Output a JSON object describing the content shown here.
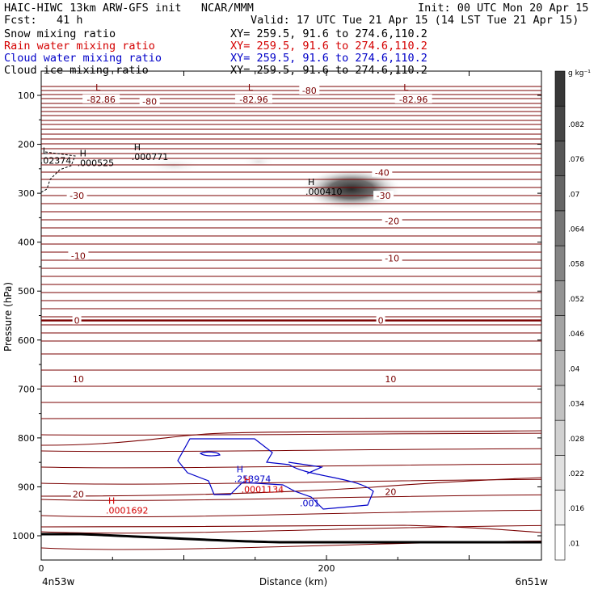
{
  "header": {
    "line1_left": "HAIC-HIWC 13km ARW-GFS init   NCAR/MMM",
    "line1_right": "Init: 00 UTC Mon 20 Apr 15",
    "line2_left": "Fcst:   41 h",
    "line2_right": "Valid: 17 UTC Tue 21 Apr 15 (14 LST Tue 21 Apr 15)",
    "fields": [
      {
        "name": "Snow mixing ratio",
        "xy": "XY= 259.5, 91.6 to 274.6,110.2",
        "color": "#000000"
      },
      {
        "name": "Rain water mixing ratio",
        "xy": "XY= 259.5, 91.6 to 274.6,110.2",
        "color": "#d40000"
      },
      {
        "name": "Cloud water mixing ratio",
        "xy": "XY= 259.5, 91.6 to 274.6,110.2",
        "color": "#0000c8"
      },
      {
        "name": "Cloud ice mixing ratio",
        "xy": "XY= 259.5, 91.6 to 274.6,110.2",
        "color": "#000000"
      }
    ]
  },
  "chart_data": {
    "type": "cross-section",
    "ylabel": "Pressure (hPa)",
    "xlabel": "Distance (km)",
    "x_ticks": [
      0,
      200
    ],
    "y_ticks": [
      100,
      200,
      300,
      400,
      500,
      600,
      700,
      800,
      900,
      1000
    ],
    "xlim": [
      0,
      300
    ],
    "ylim": [
      1050,
      50
    ],
    "x_endpoints": {
      "left": "4n53w",
      "right": "6n51w"
    },
    "colorbar": {
      "unit": "g kg⁻¹",
      "levels": [
        ".01",
        ".016",
        ".022",
        ".028",
        ".034",
        ".04",
        ".046",
        ".052",
        ".058",
        ".064",
        ".07",
        ".076",
        ".082"
      ]
    },
    "temperature_contour_labels": [
      {
        "text": "-82.86",
        "x": 42,
        "p": 108
      },
      {
        "text": "-80",
        "x": 76,
        "p": 112
      },
      {
        "text": "-82.96",
        "x": 149,
        "p": 108
      },
      {
        "text": "-80",
        "x": 188,
        "p": 90
      },
      {
        "text": "-82.96",
        "x": 261,
        "p": 108
      },
      {
        "text": "-40",
        "x": 239,
        "p": 258
      },
      {
        "text": "-30",
        "x": 25,
        "p": 305
      },
      {
        "text": "-30",
        "x": 240,
        "p": 305
      },
      {
        "text": "-20",
        "x": 246,
        "p": 357
      },
      {
        "text": "-10",
        "x": 26,
        "p": 428
      },
      {
        "text": "-10",
        "x": 246,
        "p": 433
      },
      {
        "text": "0",
        "x": 25,
        "p": 560
      },
      {
        "text": "0",
        "x": 238,
        "p": 560
      },
      {
        "text": "10",
        "x": 26,
        "p": 680
      },
      {
        "text": "10",
        "x": 245,
        "p": 680
      },
      {
        "text": "20",
        "x": 26,
        "p": 915
      },
      {
        "text": "20",
        "x": 245,
        "p": 910
      }
    ],
    "extrema": [
      {
        "mark": "L",
        "value": "",
        "x": 38,
        "p": 90,
        "color": "#800000"
      },
      {
        "mark": "L",
        "value": "",
        "x": 145,
        "p": 90,
        "color": "#800000"
      },
      {
        "mark": "L",
        "value": "",
        "x": 254,
        "p": 90,
        "color": "#800000"
      },
      {
        "mark": "L",
        "value": ".02374",
        "x": 1,
        "p": 220,
        "color": "#000000"
      },
      {
        "mark": "H",
        "value": ".000525",
        "x": 27,
        "p": 225,
        "color": "#000000"
      },
      {
        "mark": "H",
        "value": ".000771",
        "x": 65,
        "p": 212,
        "color": "#000000"
      },
      {
        "mark": "H",
        "value": ".000410",
        "x": 187,
        "p": 283,
        "color": "#000000"
      },
      {
        "mark": "H",
        "value": ".253974",
        "x": 137,
        "p": 870,
        "color": "#0000c8"
      },
      {
        "mark": "H",
        "value": ".0001134",
        "x": 142,
        "p": 892,
        "color": "#d40000"
      },
      {
        "mark": "H",
        "value": ".0001692",
        "x": 47,
        "p": 935,
        "color": "#d40000"
      },
      {
        "mark": "",
        "value": ".001",
        "x": 183,
        "p": 940,
        "color": "#0000c8"
      }
    ]
  }
}
